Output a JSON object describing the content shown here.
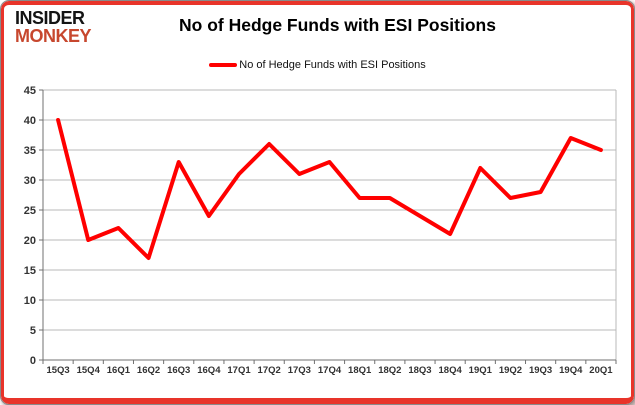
{
  "header": {
    "logo_line1": "INSIDER",
    "logo_line2": "MONKEY",
    "title": "No of Hedge Funds with ESI Positions"
  },
  "legend": {
    "label": "No of Hedge Funds with ESI Positions"
  },
  "colors": {
    "frame_red": "#e8342a",
    "logo_black": "#141414",
    "logo_red": "#c7472e",
    "line_red": "#ff0000",
    "grid_gray": "#b8b8b8",
    "axis_gray": "#707070",
    "tick_text": "#333333"
  },
  "chart_data": {
    "type": "line",
    "title": "No of Hedge Funds with ESI Positions",
    "series": [
      {
        "name": "No of Hedge Funds with ESI Positions",
        "values": [
          40,
          20,
          22,
          17,
          33,
          24,
          31,
          36,
          31,
          33,
          27,
          27,
          24,
          21,
          32,
          27,
          28,
          37,
          35
        ]
      }
    ],
    "categories": [
      "15Q3",
      "15Q4",
      "16Q1",
      "16Q2",
      "16Q3",
      "16Q4",
      "17Q1",
      "17Q2",
      "17Q3",
      "17Q4",
      "18Q1",
      "18Q2",
      "18Q3",
      "18Q4",
      "19Q1",
      "19Q2",
      "19Q3",
      "19Q4",
      "20Q1"
    ],
    "xlabel": "",
    "ylabel": "",
    "ylim": [
      0,
      45
    ],
    "yticks": [
      0,
      5,
      10,
      15,
      20,
      25,
      30,
      35,
      40,
      45
    ],
    "grid": true,
    "legend_position": "top",
    "line_color": "#ff0000"
  }
}
